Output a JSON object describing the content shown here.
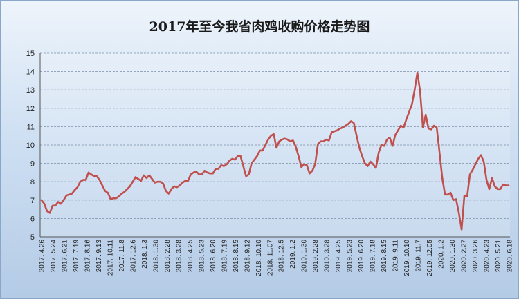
{
  "chart_data": {
    "type": "line",
    "title": "2017年至今我省肉鸡收购价格走势图",
    "xlabel": "",
    "ylabel": "",
    "ylim": [
      5,
      15
    ],
    "yticks": [
      5,
      6,
      7,
      8,
      9,
      10,
      11,
      12,
      13,
      14,
      15
    ],
    "grid": true,
    "line_color": "#c0504d",
    "x_tick_labels": [
      "2017. 4.26",
      "2017. 5.24",
      "2017. 6.21",
      "2017. 7.19",
      "2017. 8.16",
      "2017. 9.13",
      "2017. 10.11",
      "2017. 11.8",
      "2017. 12.6",
      "2018. 1.3",
      "2018. 1.30",
      "2018. 2.28",
      "2018. 3.28",
      "2018. 4.25",
      "2018. 5.23",
      "2018. 6.20",
      "2018. 7.19",
      "2018. 8.15",
      "2018. 9.12",
      "2018. 10.10",
      "2018. 11.07",
      "2018. 12.5",
      "2019. 1.2",
      "2019. 1.30",
      "2019. 2.28",
      "2019. 3.28",
      "2019. 4.25",
      "2019. 5.23",
      "2019. 6.20",
      "2019. 7.18",
      "2019. 8.15",
      "2019. 9.11",
      "2019. 10.10",
      "2019. 11.7",
      "2019. 12.05",
      "2020. 1.2",
      "2020. 1.30",
      "2020. 2.27",
      "2020. 3.26",
      "2020. 4.23",
      "2020. 5.21",
      "2020. 6.18"
    ],
    "series": [
      {
        "values": [
          7.0,
          6.8,
          6.4,
          6.3,
          6.7,
          6.7,
          6.9,
          6.8,
          7.0,
          7.25,
          7.3,
          7.35,
          7.55,
          7.7,
          8.0,
          8.1,
          8.1,
          8.5,
          8.4,
          8.3,
          8.3,
          8.1,
          7.8,
          7.5,
          7.4,
          7.05,
          7.1,
          7.1,
          7.2,
          7.35,
          7.45,
          7.6,
          7.75,
          8.0,
          8.25,
          8.15,
          8.05,
          8.35,
          8.2,
          8.35,
          8.15,
          7.95,
          8.0,
          8.0,
          7.9,
          7.5,
          7.35,
          7.6,
          7.75,
          7.7,
          7.8,
          7.95,
          8.05,
          8.05,
          8.4,
          8.5,
          8.55,
          8.4,
          8.4,
          8.6,
          8.5,
          8.45,
          8.45,
          8.7,
          8.7,
          8.9,
          8.85,
          8.95,
          9.15,
          9.25,
          9.2,
          9.4,
          9.4,
          8.85,
          8.3,
          8.4,
          9.0,
          9.2,
          9.4,
          9.7,
          9.7,
          10.0,
          10.3,
          10.5,
          10.6,
          9.85,
          10.2,
          10.3,
          10.35,
          10.3,
          10.2,
          10.25,
          9.9,
          9.4,
          8.8,
          8.95,
          8.9,
          8.45,
          8.6,
          8.95,
          10.05,
          10.2,
          10.2,
          10.3,
          10.25,
          10.7,
          10.75,
          10.8,
          10.9,
          10.95,
          11.05,
          11.15,
          11.3,
          11.2,
          10.5,
          9.85,
          9.4,
          9.0,
          8.85,
          9.1,
          8.95,
          8.75,
          9.6,
          10.0,
          9.95,
          10.3,
          10.4,
          9.95,
          10.55,
          10.8,
          11.05,
          10.95,
          11.4,
          11.8,
          12.2,
          13.0,
          13.95,
          12.9,
          10.95,
          11.65,
          10.9,
          10.85,
          11.05,
          10.95,
          9.6,
          8.2,
          7.3,
          7.3,
          7.4,
          7.0,
          7.05,
          6.3,
          5.4,
          7.25,
          7.2,
          8.4,
          8.65,
          8.95,
          9.25,
          9.45,
          9.1,
          8.1,
          7.6,
          8.2,
          7.75,
          7.6,
          7.6,
          7.85,
          7.8,
          7.8
        ]
      }
    ]
  }
}
